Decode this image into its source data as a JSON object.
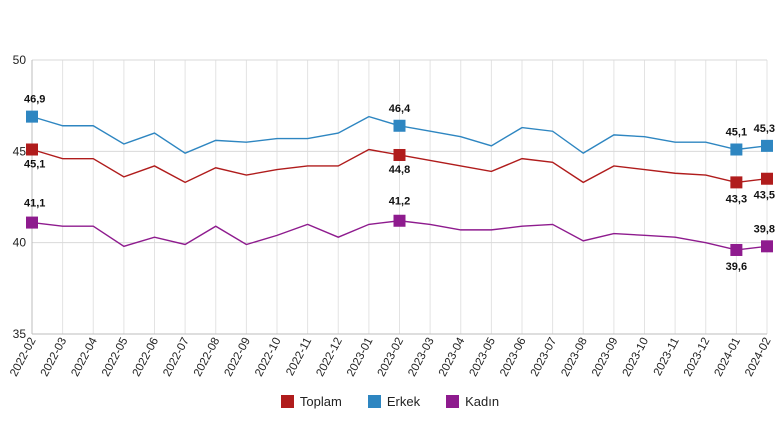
{
  "chart_data": {
    "type": "line",
    "title": "",
    "xlabel": "",
    "ylabel": "",
    "ylim": [
      35,
      50
    ],
    "yticks": [
      35,
      40,
      45,
      50
    ],
    "grid": true,
    "legend_position": "bottom",
    "categories": [
      "2022-02",
      "2022-03",
      "2022-04",
      "2022-05",
      "2022-06",
      "2022-07",
      "2022-08",
      "2022-09",
      "2022-10",
      "2022-11",
      "2022-12",
      "2023-01",
      "2023-02",
      "2023-03",
      "2023-04",
      "2023-05",
      "2023-06",
      "2023-07",
      "2023-08",
      "2023-09",
      "2023-10",
      "2023-11",
      "2023-12",
      "2024-01",
      "2024-02"
    ],
    "series": [
      {
        "name": "Toplam",
        "color": "#b01c1c",
        "values": [
          45.1,
          44.6,
          44.6,
          43.6,
          44.2,
          43.3,
          44.1,
          43.7,
          44.0,
          44.2,
          44.2,
          45.1,
          44.8,
          44.5,
          44.2,
          43.9,
          44.6,
          44.4,
          43.3,
          44.2,
          44.0,
          43.8,
          43.7,
          43.3,
          43.5
        ],
        "labels": [
          {
            "index": 0,
            "text": "45,1"
          },
          {
            "index": 12,
            "text": "44,8"
          },
          {
            "index": 23,
            "text": "43,3"
          },
          {
            "index": 24,
            "text": "43,5"
          }
        ]
      },
      {
        "name": "Erkek",
        "color": "#2e86c1",
        "values": [
          46.9,
          46.4,
          46.4,
          45.4,
          46.0,
          44.9,
          45.6,
          45.5,
          45.7,
          45.7,
          46.0,
          46.9,
          46.4,
          46.1,
          45.8,
          45.3,
          46.3,
          46.1,
          44.9,
          45.9,
          45.8,
          45.5,
          45.5,
          45.1,
          45.3
        ],
        "labels": [
          {
            "index": 0,
            "text": "46,9"
          },
          {
            "index": 12,
            "text": "46,4"
          },
          {
            "index": 23,
            "text": "45,1"
          },
          {
            "index": 24,
            "text": "45,3"
          }
        ]
      },
      {
        "name": "Kadın",
        "color": "#8e1b8e",
        "values": [
          41.1,
          40.9,
          40.9,
          39.8,
          40.3,
          39.9,
          40.9,
          39.9,
          40.4,
          41.0,
          40.3,
          41.0,
          41.2,
          41.0,
          40.7,
          40.7,
          40.9,
          41.0,
          40.1,
          40.5,
          40.4,
          40.3,
          40.0,
          39.6,
          39.8
        ],
        "labels": [
          {
            "index": 0,
            "text": "41,1"
          },
          {
            "index": 12,
            "text": "41,2"
          },
          {
            "index": 23,
            "text": "39,6"
          },
          {
            "index": 24,
            "text": "39,8"
          }
        ]
      }
    ]
  },
  "legend": {
    "items": [
      {
        "label": "Toplam",
        "color": "#b01c1c"
      },
      {
        "label": "Erkek",
        "color": "#2e86c1"
      },
      {
        "label": "Kadın",
        "color": "#8e1b8e"
      }
    ]
  }
}
